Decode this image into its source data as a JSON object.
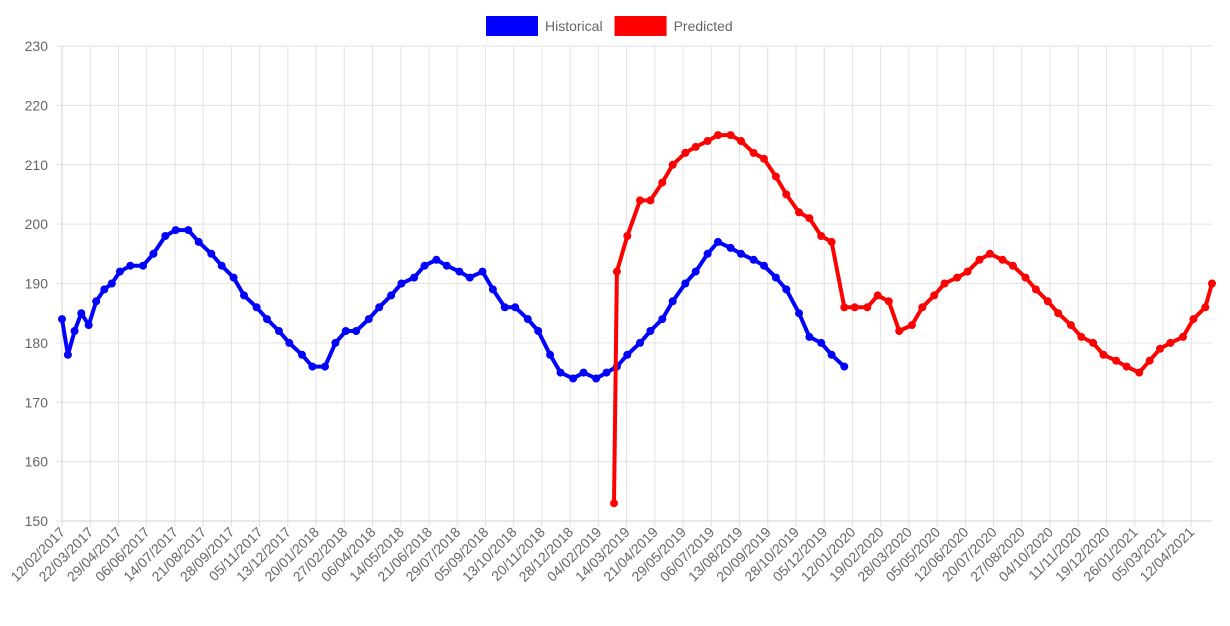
{
  "chart_data": {
    "type": "line",
    "title": "",
    "xlabel": "",
    "ylabel": "",
    "ylim": [
      150,
      230
    ],
    "yticks": [
      150,
      160,
      170,
      180,
      190,
      200,
      210,
      220,
      230
    ],
    "xlim": [
      "2017-02-12",
      "2021-05-10"
    ],
    "grid": true,
    "legend_position": "top-center",
    "xtick_labels": [
      "12/02/2017",
      "22/03/2017",
      "29/04/2017",
      "06/06/2017",
      "14/07/2017",
      "21/08/2017",
      "28/09/2017",
      "05/11/2017",
      "13/12/2017",
      "20/01/2018",
      "27/02/2018",
      "06/04/2018",
      "14/05/2018",
      "21/06/2018",
      "29/07/2018",
      "05/09/2018",
      "13/10/2018",
      "20/11/2018",
      "28/12/2018",
      "04/02/2019",
      "14/03/2019",
      "21/04/2019",
      "29/05/2019",
      "06/07/2019",
      "13/08/2019",
      "20/09/2019",
      "28/10/2019",
      "05/12/2019",
      "12/01/2020",
      "19/02/2020",
      "28/03/2020",
      "05/05/2020",
      "12/06/2020",
      "20/07/2020",
      "27/08/2020",
      "04/10/2020",
      "11/11/2020",
      "19/12/2020",
      "26/01/2021",
      "05/03/2021",
      "12/04/2021"
    ],
    "series": [
      {
        "name": "Historical",
        "color": "#0000ff",
        "points": [
          [
            "2017-02-12",
            184
          ],
          [
            "2017-02-20",
            178
          ],
          [
            "2017-03-01",
            182
          ],
          [
            "2017-03-10",
            185
          ],
          [
            "2017-03-20",
            183
          ],
          [
            "2017-03-30",
            187
          ],
          [
            "2017-04-10",
            189
          ],
          [
            "2017-04-20",
            190
          ],
          [
            "2017-05-01",
            192
          ],
          [
            "2017-05-15",
            193
          ],
          [
            "2017-06-01",
            193
          ],
          [
            "2017-06-15",
            195
          ],
          [
            "2017-07-01",
            198
          ],
          [
            "2017-07-15",
            199
          ],
          [
            "2017-08-01",
            199
          ],
          [
            "2017-08-15",
            197
          ],
          [
            "2017-09-01",
            195
          ],
          [
            "2017-09-15",
            193
          ],
          [
            "2017-10-01",
            191
          ],
          [
            "2017-10-15",
            188
          ],
          [
            "2017-11-01",
            186
          ],
          [
            "2017-11-15",
            184
          ],
          [
            "2017-12-01",
            182
          ],
          [
            "2017-12-15",
            180
          ],
          [
            "2018-01-01",
            178
          ],
          [
            "2018-01-15",
            176
          ],
          [
            "2018-02-01",
            176
          ],
          [
            "2018-02-15",
            180
          ],
          [
            "2018-03-01",
            182
          ],
          [
            "2018-03-15",
            182
          ],
          [
            "2018-04-01",
            184
          ],
          [
            "2018-04-15",
            186
          ],
          [
            "2018-05-01",
            188
          ],
          [
            "2018-05-15",
            190
          ],
          [
            "2018-06-01",
            191
          ],
          [
            "2018-06-15",
            193
          ],
          [
            "2018-07-01",
            194
          ],
          [
            "2018-07-15",
            193
          ],
          [
            "2018-08-01",
            192
          ],
          [
            "2018-08-15",
            191
          ],
          [
            "2018-09-01",
            192
          ],
          [
            "2018-09-15",
            189
          ],
          [
            "2018-10-01",
            186
          ],
          [
            "2018-10-15",
            186
          ],
          [
            "2018-11-01",
            184
          ],
          [
            "2018-11-15",
            182
          ],
          [
            "2018-12-01",
            178
          ],
          [
            "2018-12-15",
            175
          ],
          [
            "2019-01-01",
            174
          ],
          [
            "2019-01-15",
            175
          ],
          [
            "2019-02-01",
            174
          ],
          [
            "2019-02-15",
            175
          ],
          [
            "2019-03-01",
            176
          ],
          [
            "2019-03-15",
            178
          ],
          [
            "2019-04-01",
            180
          ],
          [
            "2019-04-15",
            182
          ],
          [
            "2019-05-01",
            184
          ],
          [
            "2019-05-15",
            187
          ],
          [
            "2019-06-01",
            190
          ],
          [
            "2019-06-15",
            192
          ],
          [
            "2019-07-01",
            195
          ],
          [
            "2019-07-15",
            197
          ],
          [
            "2019-08-01",
            196
          ],
          [
            "2019-08-15",
            195
          ],
          [
            "2019-09-01",
            194
          ],
          [
            "2019-09-15",
            193
          ],
          [
            "2019-10-01",
            191
          ],
          [
            "2019-10-15",
            189
          ],
          [
            "2019-11-01",
            185
          ],
          [
            "2019-11-15",
            181
          ],
          [
            "2019-12-01",
            180
          ],
          [
            "2019-12-15",
            178
          ],
          [
            "2020-01-01",
            176
          ]
        ]
      },
      {
        "name": "Predicted",
        "color": "#ff0000",
        "points": [
          [
            "2019-02-25",
            153
          ],
          [
            "2019-03-01",
            192
          ],
          [
            "2019-03-15",
            198
          ],
          [
            "2019-04-01",
            204
          ],
          [
            "2019-04-15",
            204
          ],
          [
            "2019-05-01",
            207
          ],
          [
            "2019-05-15",
            210
          ],
          [
            "2019-06-01",
            212
          ],
          [
            "2019-06-15",
            213
          ],
          [
            "2019-07-01",
            214
          ],
          [
            "2019-07-15",
            215
          ],
          [
            "2019-08-01",
            215
          ],
          [
            "2019-08-15",
            214
          ],
          [
            "2019-09-01",
            212
          ],
          [
            "2019-09-15",
            211
          ],
          [
            "2019-10-01",
            208
          ],
          [
            "2019-10-15",
            205
          ],
          [
            "2019-11-01",
            202
          ],
          [
            "2019-11-15",
            201
          ],
          [
            "2019-12-01",
            198
          ],
          [
            "2019-12-15",
            197
          ],
          [
            "2020-01-01",
            186
          ],
          [
            "2020-01-15",
            186
          ],
          [
            "2020-02-01",
            186
          ],
          [
            "2020-02-15",
            188
          ],
          [
            "2020-03-01",
            187
          ],
          [
            "2020-03-15",
            182
          ],
          [
            "2020-04-01",
            183
          ],
          [
            "2020-04-15",
            186
          ],
          [
            "2020-05-01",
            188
          ],
          [
            "2020-05-15",
            190
          ],
          [
            "2020-06-01",
            191
          ],
          [
            "2020-06-15",
            192
          ],
          [
            "2020-07-01",
            194
          ],
          [
            "2020-07-15",
            195
          ],
          [
            "2020-08-01",
            194
          ],
          [
            "2020-08-15",
            193
          ],
          [
            "2020-09-01",
            191
          ],
          [
            "2020-09-15",
            189
          ],
          [
            "2020-10-01",
            187
          ],
          [
            "2020-10-15",
            185
          ],
          [
            "2020-11-01",
            183
          ],
          [
            "2020-11-15",
            181
          ],
          [
            "2020-12-01",
            180
          ],
          [
            "2020-12-15",
            178
          ],
          [
            "2021-01-01",
            177
          ],
          [
            "2021-01-15",
            176
          ],
          [
            "2021-02-01",
            175
          ],
          [
            "2021-02-15",
            177
          ],
          [
            "2021-03-01",
            179
          ],
          [
            "2021-03-15",
            180
          ],
          [
            "2021-04-01",
            181
          ],
          [
            "2021-04-15",
            184
          ],
          [
            "2021-05-01",
            186
          ],
          [
            "2021-05-10",
            190
          ]
        ]
      }
    ]
  }
}
